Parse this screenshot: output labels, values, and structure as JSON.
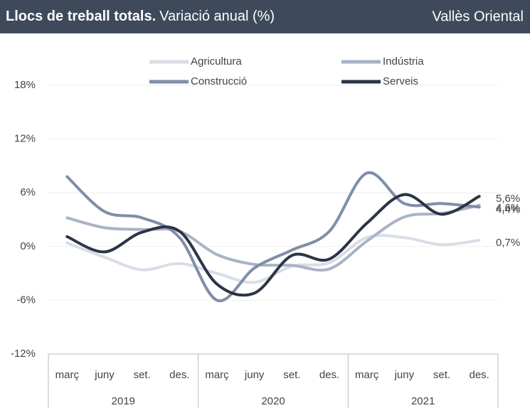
{
  "chart_data": {
    "type": "line",
    "title": "Llocs de treball totals.",
    "subtitle": "Variació anual (%)",
    "region": "Vallès Oriental",
    "categories": [
      "març",
      "juny",
      "set.",
      "des.",
      "març",
      "juny",
      "set.",
      "des.",
      "març",
      "juny",
      "set.",
      "des."
    ],
    "years": [
      "2019",
      "2020",
      "2021"
    ],
    "ylim": [
      -12,
      18
    ],
    "yticks": [
      {
        "value": -12,
        "label": "-12%"
      },
      {
        "value": -6,
        "label": "-6%"
      },
      {
        "value": 0,
        "label": "0%"
      },
      {
        "value": 6,
        "label": "6%"
      },
      {
        "value": 12,
        "label": "12%"
      },
      {
        "value": 18,
        "label": "18%"
      }
    ],
    "grid": true,
    "series": [
      {
        "name": "Agricultura",
        "color": "#d9dde6",
        "values": [
          0.4,
          -1.2,
          -2.6,
          -1.9,
          -3.0,
          -4.0,
          -2.2,
          -1.8,
          1.0,
          1.0,
          0.2,
          0.7
        ],
        "value_labels": [
          null,
          null,
          null,
          null,
          null,
          null,
          null,
          null,
          null,
          null,
          null,
          "0,7%"
        ]
      },
      {
        "name": "Indústria",
        "color": "#a9b3c6",
        "values": [
          3.2,
          2.1,
          1.9,
          1.7,
          -0.9,
          -2.0,
          -2.1,
          -2.5,
          0.6,
          3.3,
          3.7,
          4.6
        ],
        "value_labels": [
          null,
          null,
          null,
          null,
          null,
          null,
          null,
          null,
          null,
          null,
          null,
          "4,6%"
        ]
      },
      {
        "name": "Construcció",
        "color": "#7f8ea8",
        "values": [
          7.8,
          3.9,
          3.2,
          1.0,
          -6.0,
          -2.4,
          -0.4,
          1.7,
          8.2,
          4.8,
          4.8,
          4.4
        ],
        "value_labels": [
          null,
          null,
          null,
          null,
          null,
          null,
          null,
          null,
          null,
          null,
          null,
          "4,4%"
        ]
      },
      {
        "name": "Serveis",
        "color": "#2c3444",
        "values": [
          1.1,
          -0.6,
          1.6,
          1.7,
          -4.2,
          -5.2,
          -1.0,
          -1.4,
          2.6,
          5.8,
          3.6,
          5.6
        ],
        "value_labels": [
          null,
          null,
          null,
          null,
          null,
          null,
          null,
          null,
          null,
          null,
          null,
          "5,6%"
        ]
      }
    ]
  }
}
